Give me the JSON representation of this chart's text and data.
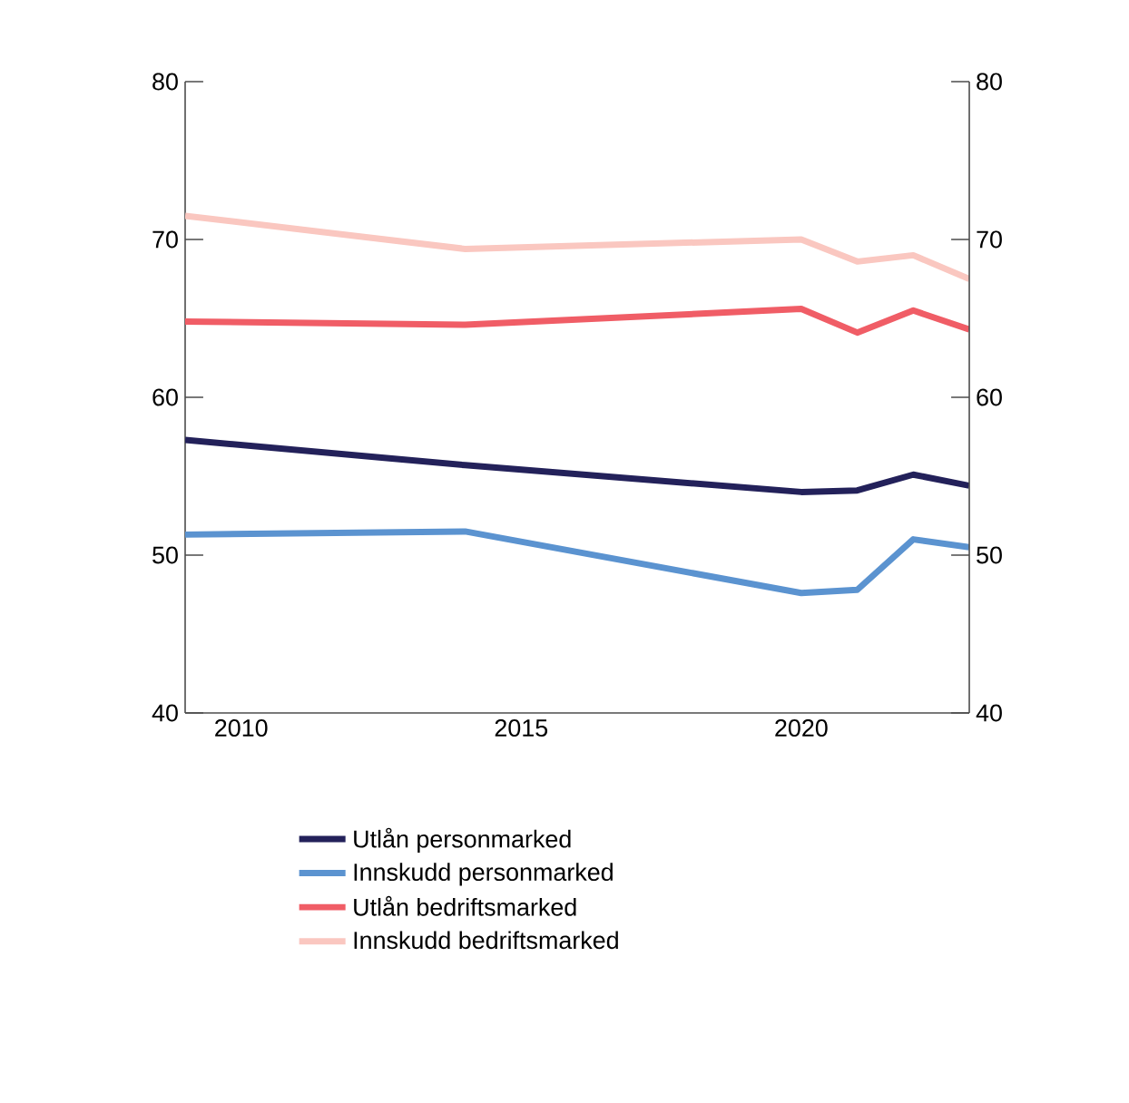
{
  "chart_data": {
    "type": "line",
    "x": [
      2009,
      2014,
      2020,
      2021,
      2022,
      2023
    ],
    "series": [
      {
        "name": "Utlån personmarked",
        "color": "#23215a",
        "values": [
          57.3,
          55.7,
          54.0,
          54.1,
          55.1,
          54.4
        ]
      },
      {
        "name": "Innskudd personmarked",
        "color": "#5b93d0",
        "values": [
          51.3,
          51.5,
          47.6,
          47.8,
          51.0,
          50.5
        ]
      },
      {
        "name": "Utlån bedriftsmarked",
        "color": "#f05d66",
        "values": [
          64.8,
          64.6,
          65.6,
          64.1,
          65.5,
          64.3
        ]
      },
      {
        "name": "Innskudd bedriftsmarked",
        "color": "#fac7c0",
        "values": [
          71.5,
          69.4,
          70.0,
          68.6,
          69.0,
          67.5
        ]
      }
    ],
    "xlim": [
      2009,
      2023
    ],
    "xticks": [
      2010,
      2015,
      2020
    ],
    "ylim": [
      40,
      80
    ],
    "yticks": [
      40,
      50,
      60,
      70,
      80
    ],
    "y2lim": [
      40,
      80
    ],
    "y2ticks": [
      40,
      50,
      60,
      70,
      80
    ],
    "legend": "bottom",
    "marker": "none",
    "line_style": "solid"
  }
}
